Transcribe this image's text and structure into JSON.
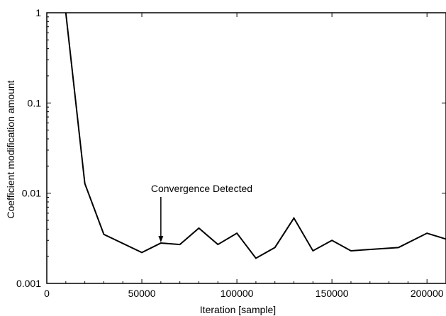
{
  "chart_data": {
    "type": "line",
    "title": "",
    "xlabel": "Iteration [sample]",
    "ylabel": "Coefficient modification amount",
    "xlim": [
      0,
      210000
    ],
    "ylim": [
      0.001,
      1
    ],
    "y_scale": "log",
    "grid": false,
    "legend": "none",
    "x_ticks": [
      0,
      50000,
      100000,
      150000,
      200000
    ],
    "x_tick_labels": [
      "0",
      "50000",
      "100000",
      "150000",
      "200000"
    ],
    "y_ticks": [
      0.001,
      0.01,
      0.1,
      1
    ],
    "y_tick_labels": [
      "0.001",
      "0.01",
      "0.1",
      "1"
    ],
    "series": [
      {
        "x": [
          10000,
          20000,
          30000,
          50000,
          60000,
          70000,
          80000,
          90000,
          100000,
          110000,
          120000,
          130000,
          140000,
          150000,
          160000,
          185000,
          200000,
          210000
        ],
        "y": [
          1.0,
          0.0128,
          0.0035,
          0.0022,
          0.0028,
          0.0027,
          0.0041,
          0.0027,
          0.0036,
          0.0019,
          0.0025,
          0.0053,
          0.0023,
          0.003,
          0.0023,
          0.0025,
          0.0036,
          0.0031
        ]
      }
    ],
    "annotations": [
      {
        "text": "Convergence Detected",
        "x": 60000,
        "y": 0.0028
      }
    ],
    "colors": {
      "line": "#000000",
      "axis": "#000000",
      "background": "#ffffff"
    }
  }
}
